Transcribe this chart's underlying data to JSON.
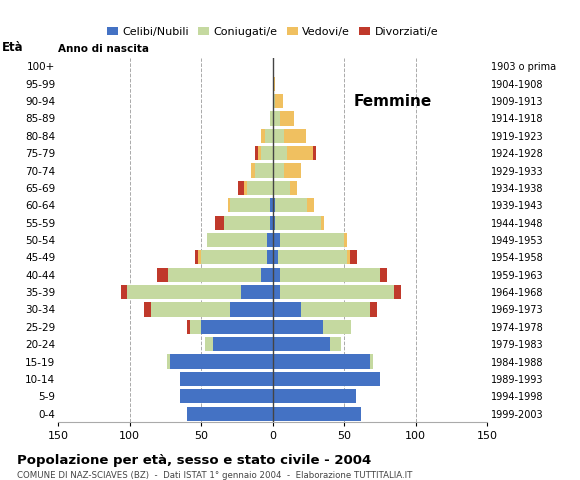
{
  "age_groups": [
    "0-4",
    "5-9",
    "10-14",
    "15-19",
    "20-24",
    "25-29",
    "30-34",
    "35-39",
    "40-44",
    "45-49",
    "50-54",
    "55-59",
    "60-64",
    "65-69",
    "70-74",
    "75-79",
    "80-84",
    "85-89",
    "90-94",
    "95-99",
    "100+"
  ],
  "birth_years": [
    "1999-2003",
    "1994-1998",
    "1989-1993",
    "1984-1988",
    "1979-1983",
    "1974-1978",
    "1969-1973",
    "1964-1968",
    "1959-1963",
    "1954-1958",
    "1949-1953",
    "1944-1948",
    "1939-1943",
    "1934-1938",
    "1929-1933",
    "1924-1928",
    "1919-1923",
    "1914-1918",
    "1909-1913",
    "1904-1908",
    "1903 o prima"
  ],
  "male_single": [
    60,
    65,
    65,
    72,
    42,
    50,
    30,
    22,
    8,
    4,
    4,
    2,
    2,
    0,
    0,
    0,
    0,
    0,
    0,
    0,
    0
  ],
  "male_married": [
    0,
    0,
    0,
    2,
    5,
    8,
    55,
    80,
    65,
    46,
    42,
    32,
    28,
    18,
    12,
    8,
    5,
    2,
    0,
    0,
    0
  ],
  "male_widowed": [
    0,
    0,
    0,
    0,
    0,
    0,
    0,
    0,
    0,
    2,
    0,
    0,
    1,
    2,
    3,
    2,
    3,
    0,
    0,
    0,
    0
  ],
  "male_divorced": [
    0,
    0,
    0,
    0,
    0,
    2,
    5,
    4,
    8,
    2,
    0,
    6,
    0,
    4,
    0,
    2,
    0,
    0,
    0,
    0,
    0
  ],
  "female_single": [
    62,
    58,
    75,
    68,
    40,
    35,
    20,
    5,
    5,
    4,
    5,
    2,
    2,
    0,
    0,
    0,
    0,
    0,
    0,
    0,
    0
  ],
  "female_married": [
    0,
    0,
    0,
    2,
    8,
    20,
    48,
    80,
    70,
    48,
    45,
    32,
    22,
    12,
    8,
    10,
    8,
    5,
    2,
    0,
    0
  ],
  "female_widowed": [
    0,
    0,
    0,
    0,
    0,
    0,
    0,
    0,
    0,
    2,
    2,
    2,
    5,
    5,
    12,
    18,
    15,
    10,
    5,
    2,
    0
  ],
  "female_divorced": [
    0,
    0,
    0,
    0,
    0,
    0,
    5,
    5,
    5,
    5,
    0,
    0,
    0,
    0,
    0,
    2,
    0,
    0,
    0,
    0,
    0
  ],
  "color_single": "#4472c4",
  "color_married": "#c5d9a0",
  "color_widowed": "#f0c060",
  "color_divorced": "#c0392b",
  "xlim": 150,
  "title": "Popolazione per età, sesso e stato civile - 2004",
  "subtitle": "COMUNE DI NAZ-SCIAVES (BZ)  -  Dati ISTAT 1° gennaio 2004  -  Elaborazione TUTTITALIA.IT",
  "eta_label": "Età",
  "anno_label": "Anno di nascita",
  "femmine_label": "Femmine",
  "legend_labels": [
    "Celibi/Nubili",
    "Coniugati/e",
    "Vedovi/e",
    "Divorziati/e"
  ],
  "bar_height": 0.82
}
